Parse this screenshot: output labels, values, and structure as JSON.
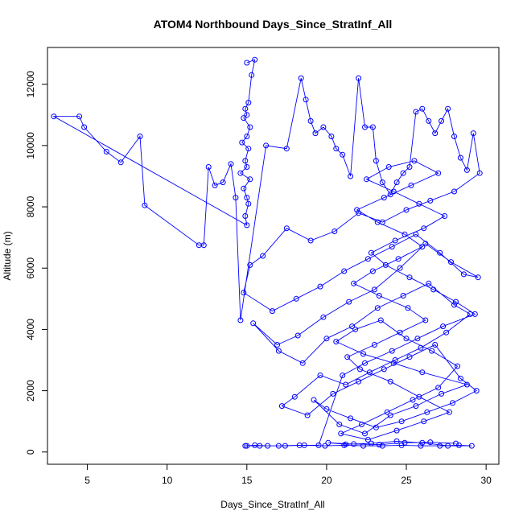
{
  "chart_data": {
    "type": "line",
    "title": "ATOM4 Northbound Days_Since_StratInf_All",
    "xlabel": "Days_Since_StratInf_All",
    "ylabel": "Altitude (m)",
    "xlim": [
      2.5,
      30.8
    ],
    "ylim": [
      -400,
      13200
    ],
    "xticks": [
      5,
      10,
      15,
      20,
      25,
      30
    ],
    "yticks": [
      0,
      2000,
      4000,
      6000,
      8000,
      10000,
      12000
    ],
    "grid": false,
    "marker": "open-circle",
    "series_color": "#0000ff",
    "series": [
      {
        "x": [
          15.0,
          15.5,
          15.3,
          15.1,
          14.9,
          15.0,
          14.8,
          15.2,
          15.0,
          14.7,
          15.1,
          14.9,
          15.0,
          14.6,
          15.2,
          14.8,
          15.0,
          15.1,
          14.9,
          15.0,
          2.9,
          4.5,
          4.8,
          6.2,
          7.1,
          8.3,
          8.6,
          12.0,
          12.3,
          12.6,
          13.0,
          13.5,
          14.0,
          14.3,
          14.6,
          16.2,
          17.5,
          18.4,
          18.7,
          19.0,
          19.3,
          19.8,
          20.3,
          20.6,
          21.0,
          21.5,
          22.0,
          22.4,
          22.9,
          23.1,
          23.5,
          24.0,
          24.4,
          24.8,
          25.2,
          25.6,
          26.0,
          26.4,
          26.8,
          27.2,
          27.6,
          28.0,
          28.4,
          28.8,
          29.2,
          29.6,
          28.0,
          26.5,
          25.0,
          23.5,
          22.0,
          20.5,
          19.0,
          17.5,
          16.0,
          15.2,
          14.8,
          16.6,
          18.1,
          19.6,
          21.1,
          22.6,
          24.1,
          25.6,
          27.1,
          28.6,
          29.5,
          27.8,
          26.2,
          24.6,
          23.0,
          21.4,
          19.8,
          18.2,
          16.9,
          15.4,
          17.0,
          18.5,
          20.0,
          21.6,
          23.2,
          24.8,
          26.4,
          28.0,
          29.0,
          27.5,
          25.9,
          24.3,
          22.7,
          21.2,
          19.6,
          18.0,
          17.2,
          18.8,
          20.4,
          22.0,
          23.6,
          25.2,
          26.8,
          28.4,
          29.4,
          27.9,
          26.3,
          24.7,
          23.1,
          21.5,
          20.0,
          19.2,
          20.8,
          22.4,
          24.0,
          25.6,
          27.2,
          28.8,
          26.0,
          24.2,
          22.3,
          20.6,
          21.8,
          23.4,
          25.0,
          26.6,
          28.2,
          27.0,
          25.4,
          23.8,
          22.2,
          20.9,
          22.6,
          24.4,
          26.1,
          27.7,
          25.8,
          24.0,
          22.1,
          21.3,
          23.0,
          24.6,
          26.2,
          25.1,
          23.3,
          21.7,
          22.9,
          24.5,
          26.0,
          24.9,
          23.2,
          21.9,
          23.6,
          25.3,
          27.0,
          25.5,
          23.9,
          22.5,
          24.2,
          25.8,
          27.4,
          26.1,
          24.3,
          22.8,
          23.7,
          25.2,
          26.7,
          28.1,
          29.3,
          27.3,
          25.7,
          24.1,
          22.4,
          21.0,
          19.5,
          18.3,
          17.0,
          15.8,
          15.0,
          14.9,
          15.5,
          16.3,
          17.4,
          18.6,
          19.9,
          21.1,
          22.3,
          23.5,
          24.7,
          25.9,
          27.1,
          28.3,
          29.1,
          27.6,
          26.0,
          24.4,
          22.8,
          21.2,
          20.1,
          21.7,
          23.3,
          24.9,
          26.5,
          28.1
        ],
        "y": [
          12700,
          12800,
          12300,
          11400,
          11200,
          11000,
          10900,
          10600,
          10300,
          10100,
          9900,
          9500,
          9300,
          9100,
          8900,
          8600,
          8300,
          8100,
          7700,
          7400,
          10950,
          10950,
          10600,
          9800,
          9450,
          10300,
          8050,
          6750,
          6750,
          9300,
          8700,
          8800,
          9400,
          8300,
          4300,
          10000,
          9900,
          12200,
          11500,
          10800,
          10400,
          10600,
          10300,
          9900,
          9700,
          9000,
          12200,
          10600,
          10600,
          9500,
          8800,
          8400,
          8800,
          9100,
          9300,
          11100,
          11200,
          10800,
          10400,
          10800,
          11200,
          10300,
          9600,
          9200,
          10400,
          9100,
          8500,
          8200,
          7900,
          7500,
          7800,
          7200,
          6900,
          7300,
          6400,
          6100,
          5200,
          4600,
          5000,
          5400,
          5900,
          6300,
          6700,
          7100,
          6500,
          5800,
          5700,
          6200,
          6800,
          6000,
          5300,
          4900,
          4400,
          3800,
          3500,
          4200,
          3300,
          2900,
          3700,
          4100,
          4700,
          5100,
          5500,
          4800,
          4500,
          3900,
          3400,
          3000,
          2600,
          2200,
          2500,
          1800,
          1500,
          1200,
          1900,
          2300,
          2700,
          3100,
          3500,
          2400,
          2000,
          1600,
          1300,
          1000,
          800,
          1100,
          1400,
          1700,
          900,
          600,
          1200,
          1500,
          1900,
          2200,
          2600,
          2900,
          3200,
          3600,
          4000,
          4300,
          3700,
          3300,
          2800,
          2100,
          1700,
          1300,
          900,
          600,
          400,
          700,
          1000,
          1300,
          1800,
          2300,
          2700,
          3100,
          3500,
          3900,
          4300,
          4700,
          5100,
          5500,
          5900,
          6300,
          6700,
          7100,
          7500,
          7900,
          8300,
          8700,
          9100,
          9500,
          9300,
          8900,
          8500,
          8100,
          7700,
          7300,
          6900,
          6500,
          6100,
          5700,
          5300,
          4900,
          4500,
          4100,
          3700,
          3300,
          2900,
          2500,
          220,
          220,
          200,
          200,
          200,
          200,
          220,
          200,
          200,
          220,
          200,
          220,
          200,
          200,
          220,
          200,
          200,
          220,
          200,
          200,
          300,
          350,
          280,
          250,
          300,
          260,
          240,
          300,
          320,
          280
        ]
      }
    ]
  }
}
